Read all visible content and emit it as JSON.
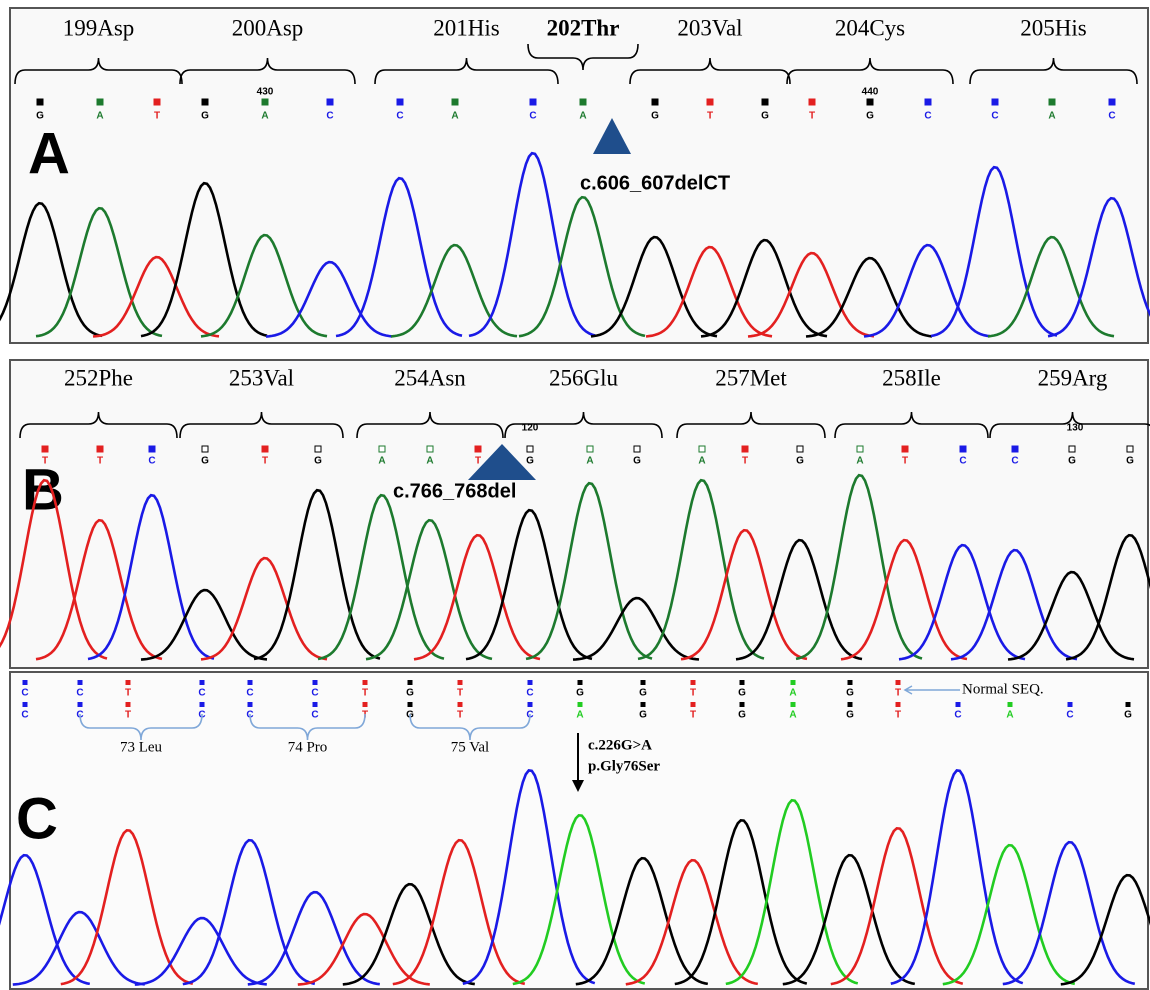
{
  "panels": [
    {
      "label": "A",
      "codons": [
        {
          "name": "199Asp",
          "bases": [
            "G",
            "A",
            "T"
          ]
        },
        {
          "name": "200Asp",
          "bases": [
            "G",
            "A",
            "C"
          ]
        },
        {
          "name": "201His",
          "bases": [
            "C",
            "A",
            "C"
          ]
        },
        {
          "name": "202Thr",
          "bases": [
            "A"
          ]
        },
        {
          "name": "203Val",
          "bases": [
            "G",
            "T",
            "G"
          ]
        },
        {
          "name": "204Cys",
          "bases": [
            "T",
            "G",
            "C"
          ]
        },
        {
          "name": "205His",
          "bases": [
            "C",
            "A",
            "C"
          ]
        }
      ],
      "positions": [
        "430",
        "440"
      ],
      "annotation": "c.606_607delCT"
    },
    {
      "label": "B",
      "codons": [
        {
          "name": "252Phe",
          "bases": [
            "T",
            "T",
            "C"
          ]
        },
        {
          "name": "253Val",
          "bases": [
            "G",
            "T",
            "G"
          ]
        },
        {
          "name": "254Asn",
          "bases": [
            "A",
            "A",
            "T"
          ]
        },
        {
          "name": "256Glu",
          "bases": [
            "G",
            "A",
            "G"
          ]
        },
        {
          "name": "257Met",
          "bases": [
            "A",
            "T",
            "G"
          ]
        },
        {
          "name": "258Ile",
          "bases": [
            "A",
            "T",
            "C"
          ]
        },
        {
          "name": "259Arg",
          "bases": [
            "C",
            "G",
            "G"
          ]
        }
      ],
      "positions": [
        "120",
        "130"
      ],
      "annotation": "c.766_768del"
    },
    {
      "label": "C",
      "reference": {
        "label": "Normal SEQ.",
        "bases": [
          "C",
          "C",
          "T",
          "C",
          "C",
          "C",
          "T",
          "G",
          "T",
          "C",
          "G",
          "G",
          "T",
          "G",
          "A",
          "G",
          "T"
        ]
      },
      "sample": {
        "bases": [
          "C",
          "C",
          "T",
          "C",
          "C",
          "C",
          "T",
          "G",
          "T",
          "C",
          "A",
          "G",
          "T",
          "G",
          "A",
          "G",
          "T",
          "C",
          "A",
          "C",
          "G"
        ]
      },
      "codons": [
        "73 Leu",
        "74 Pro",
        "75 Val"
      ],
      "annotations": [
        "c.226G>A",
        "p.Gly76Ser"
      ]
    }
  ]
}
